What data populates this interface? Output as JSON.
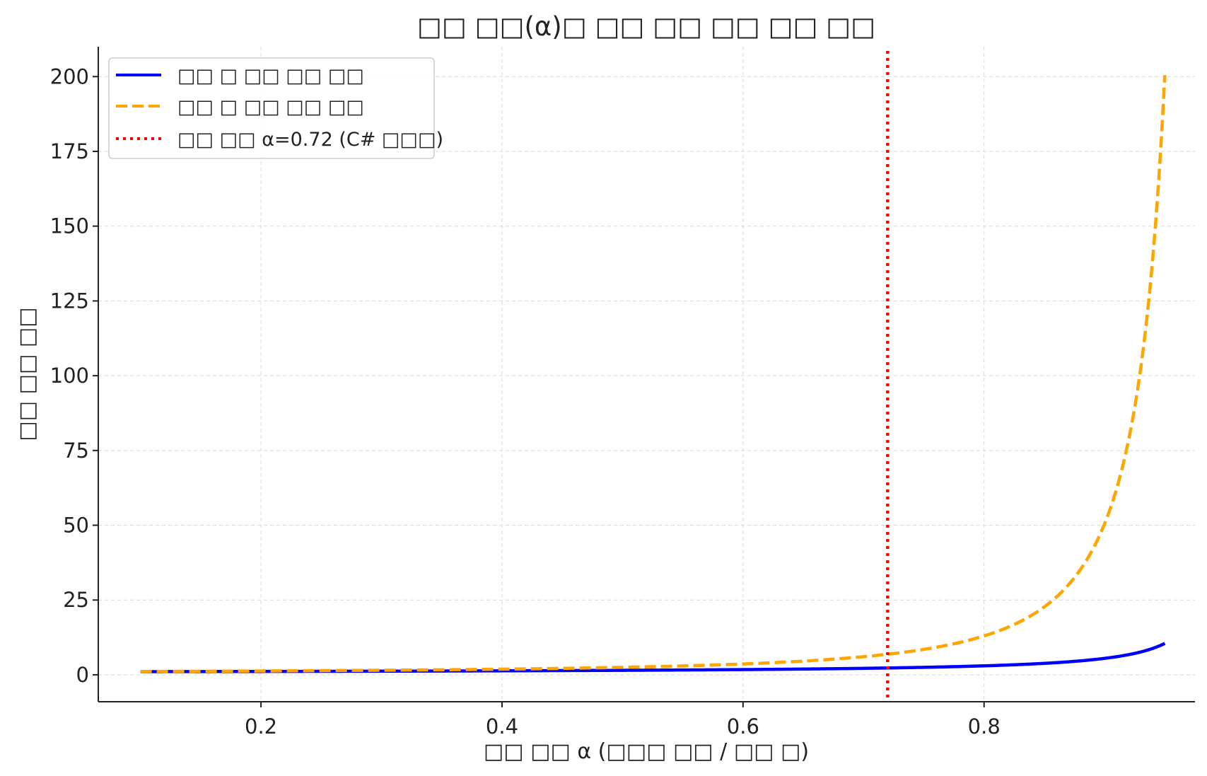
{
  "chart_data": {
    "type": "line",
    "title": "□□ □□(α)□ □□ □□ □□ □□ □□",
    "xlabel": "□□ □□ α (□□□ □□ / □□ □)",
    "ylabel": "□□ □□ □□",
    "xlim": [
      0.065,
      0.975
    ],
    "ylim": [
      -9,
      210
    ],
    "x_ticks": [
      0.2,
      0.4,
      0.6,
      0.8
    ],
    "x_tick_labels": [
      "0.2",
      "0.4",
      "0.6",
      "0.8"
    ],
    "y_ticks": [
      0,
      25,
      50,
      75,
      100,
      125,
      150,
      175,
      200
    ],
    "y_tick_labels": [
      "0",
      "25",
      "50",
      "75",
      "100",
      "125",
      "150",
      "175",
      "200"
    ],
    "grid": true,
    "legend_position": "top-left",
    "alpha_range": [
      0.1,
      0.95
    ],
    "series": [
      {
        "name": "□□ □ □□ □□ □□",
        "color": "#0000ff",
        "style": "solid",
        "formula": "0.5*(1+1/(1-a))",
        "x": [
          0.1,
          0.2,
          0.3,
          0.4,
          0.5,
          0.6,
          0.7,
          0.72,
          0.8,
          0.85,
          0.9,
          0.95
        ],
        "values": [
          1.06,
          1.13,
          1.21,
          1.33,
          1.5,
          1.75,
          2.17,
          2.29,
          3.0,
          3.83,
          5.5,
          10.5
        ]
      },
      {
        "name": "□□ □ □□ □□ □□",
        "color": "#ffa500",
        "style": "dashed",
        "formula": "0.5*(1+1/(1-a)^2)",
        "x": [
          0.1,
          0.2,
          0.3,
          0.4,
          0.5,
          0.6,
          0.7,
          0.72,
          0.8,
          0.85,
          0.9,
          0.95
        ],
        "values": [
          1.12,
          1.28,
          1.52,
          1.89,
          2.5,
          3.63,
          6.06,
          6.88,
          13.0,
          22.7,
          50.5,
          200.5
        ]
      }
    ],
    "reference_lines": [
      {
        "name": "□□ □□ α=0.72 (C# □□□)",
        "color": "#ff0000",
        "style": "dotted",
        "x": 0.72
      }
    ]
  }
}
